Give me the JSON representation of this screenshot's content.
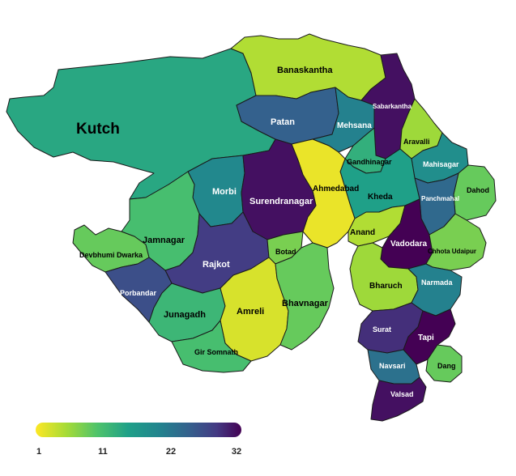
{
  "districts": [
    {
      "name": "Kutch",
      "value": 14
    },
    {
      "name": "Banaskantha",
      "value": 5
    },
    {
      "name": "Patan",
      "value": 24
    },
    {
      "name": "Mehsana",
      "value": 20
    },
    {
      "name": "Sabarkantha",
      "value": 31
    },
    {
      "name": "Aravalli",
      "value": 6
    },
    {
      "name": "Gandhinagar",
      "value": 13
    },
    {
      "name": "Mahisagar",
      "value": 18
    },
    {
      "name": "Dahod",
      "value": 9
    },
    {
      "name": "Panchmahal",
      "value": 23
    },
    {
      "name": "Kheda",
      "value": 15
    },
    {
      "name": "Ahmedabad",
      "value": 2
    },
    {
      "name": "Anand",
      "value": 5
    },
    {
      "name": "Vadodara",
      "value": 32
    },
    {
      "name": "Chhota Udaipur",
      "value": 8
    },
    {
      "name": "Morbi",
      "value": 19
    },
    {
      "name": "Surendranagar",
      "value": 31
    },
    {
      "name": "Devbhumi Dwarka",
      "value": 9
    },
    {
      "name": "Jamnagar",
      "value": 11
    },
    {
      "name": "Rajkot",
      "value": 28
    },
    {
      "name": "Botad",
      "value": 8
    },
    {
      "name": "Porbandar",
      "value": 26
    },
    {
      "name": "Junagadh",
      "value": 12
    },
    {
      "name": "Amreli",
      "value": 3
    },
    {
      "name": "Bhavnagar",
      "value": 9
    },
    {
      "name": "Gir Somnath",
      "value": 11
    },
    {
      "name": "Bharuch",
      "value": 6
    },
    {
      "name": "Narmada",
      "value": 20
    },
    {
      "name": "Surat",
      "value": 29
    },
    {
      "name": "Tapi",
      "value": 32
    },
    {
      "name": "Navsari",
      "value": 22
    },
    {
      "name": "Dang",
      "value": 9
    },
    {
      "name": "Valsad",
      "value": 31
    }
  ],
  "legend": {
    "min": 1,
    "max": 32,
    "ticks": [
      "1",
      "11",
      "22",
      "32"
    ]
  },
  "colors": {
    "stroke": "#1a1a1a",
    "sea": "#ffffff"
  }
}
